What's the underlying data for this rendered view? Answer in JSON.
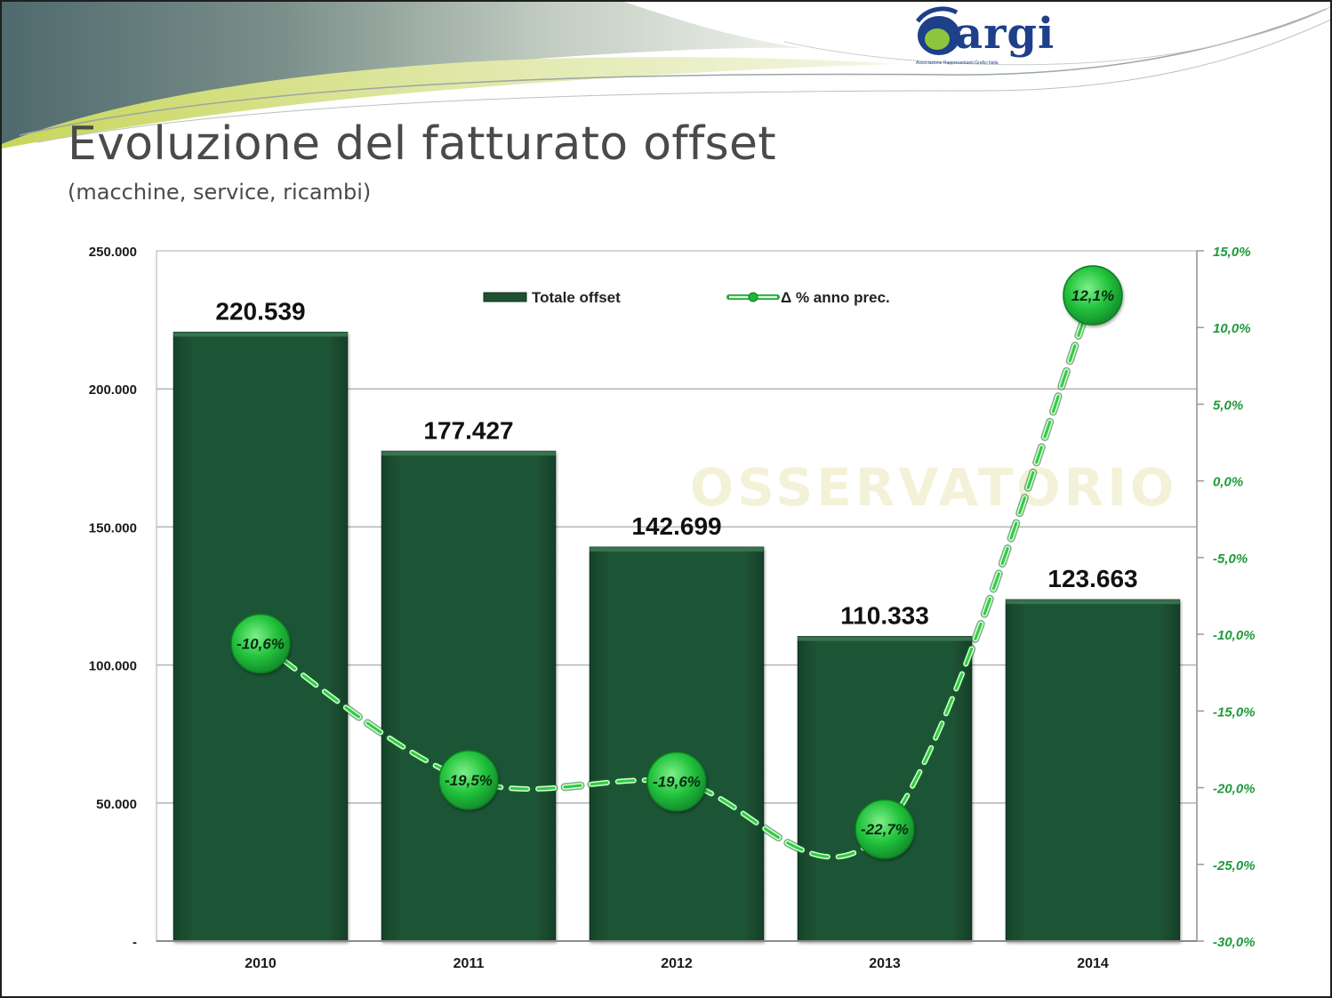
{
  "slide": {
    "title": "Evoluzione del fatturato offset",
    "subtitle": "(macchine, service, ricambi)",
    "logo_text": "argi",
    "logo_caption": "Associazione Rappresentanti Grafici Italia",
    "watermark_text": "OSSERVATORIO",
    "colors": {
      "bar": "#1e5133",
      "line": "#2ecc40",
      "marker": "#1fb43a",
      "right_axis_text": "#1e9a3a",
      "title_text": "#4a4a4a",
      "banner_dark": "#4f6a6e",
      "banner_light": "#c9d86b"
    }
  },
  "chart_data": {
    "type": "bar",
    "categories": [
      "2010",
      "2011",
      "2012",
      "2013",
      "2014"
    ],
    "series": [
      {
        "name": "Totale offset",
        "type": "bar",
        "axis": "left",
        "values": [
          220539,
          177427,
          142699,
          110333,
          123663
        ],
        "labels": [
          "220.539",
          "177.427",
          "142.699",
          "110.333",
          "123.663"
        ]
      },
      {
        "name": "Δ % anno prec.",
        "type": "line",
        "axis": "right",
        "style": "dashed-smooth",
        "values": [
          -10.6,
          -19.5,
          -19.6,
          -22.7,
          12.1
        ],
        "labels": [
          "-10,6%",
          "-19,5%",
          "-19,6%",
          "-22,7%",
          "12,1%"
        ]
      }
    ],
    "y_left": {
      "ylim": [
        0,
        250000
      ],
      "ticks": [
        0,
        50000,
        100000,
        150000,
        200000,
        250000
      ],
      "tick_labels": [
        "-",
        "50.000",
        "100.000",
        "150.000",
        "200.000",
        "250.000"
      ]
    },
    "y_right": {
      "ylim": [
        -30,
        15
      ],
      "ticks": [
        -30,
        -25,
        -20,
        -15,
        -10,
        -5,
        0,
        5,
        10,
        15
      ],
      "tick_labels": [
        "-30,0%",
        "-25,0%",
        "-20,0%",
        "-15,0%",
        "-10,0%",
        "-5,0%",
        "0,0%",
        "5,0%",
        "10,0%",
        "15,0%"
      ]
    },
    "legend": {
      "placement": "top-center",
      "items": [
        "Totale offset",
        "Δ % anno prec."
      ]
    },
    "grid": true,
    "title": "",
    "xlabel": "",
    "ylabel": ""
  }
}
